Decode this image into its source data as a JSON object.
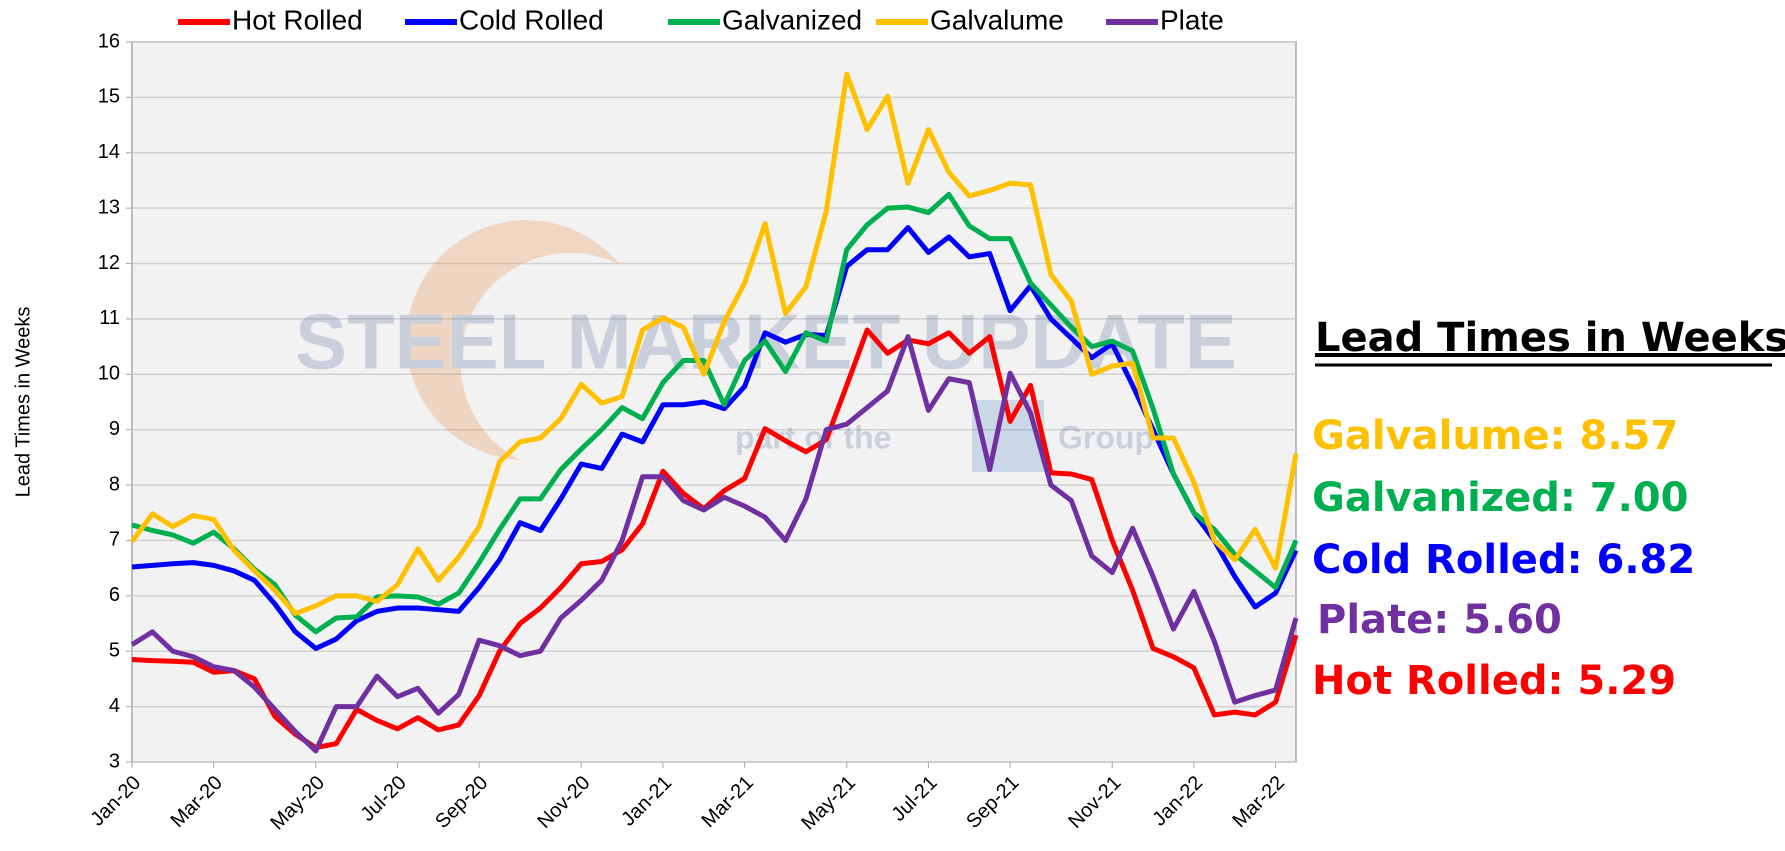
{
  "chart_data": {
    "type": "line",
    "y_label": "Lead Times in Weeks",
    "categories": [
      "Jan-20",
      null,
      null,
      null,
      "Mar-20",
      null,
      null,
      null,
      null,
      "May-20",
      null,
      null,
      null,
      "Jul-20",
      null,
      null,
      null,
      "Sep-20",
      null,
      null,
      null,
      null,
      "Nov-20",
      null,
      null,
      null,
      "Jan-21",
      null,
      null,
      null,
      "Mar-21",
      null,
      null,
      null,
      null,
      "May-21",
      null,
      null,
      null,
      "Jul-21",
      null,
      null,
      null,
      "Sep-21",
      null,
      null,
      null,
      null,
      "Nov-21",
      null,
      null,
      null,
      "Jan-22",
      null,
      null,
      null,
      "Mar-22",
      null
    ],
    "series": [
      {
        "name": "Hot Rolled",
        "color": "#ff0000",
        "values": [
          4.85,
          4.83,
          4.82,
          4.8,
          4.62,
          4.65,
          4.5,
          3.82,
          3.5,
          3.26,
          3.33,
          3.95,
          3.75,
          3.6,
          3.8,
          3.58,
          3.67,
          4.2,
          5.0,
          5.5,
          5.78,
          6.15,
          6.58,
          6.62,
          6.83,
          7.3,
          8.25,
          7.85,
          7.57,
          7.9,
          8.12,
          9.02,
          8.8,
          8.6,
          8.82,
          9.8,
          10.8,
          10.38,
          10.62,
          10.55,
          10.75,
          10.38,
          10.68,
          9.15,
          9.8,
          8.22,
          8.2,
          8.1,
          7.0,
          6.1,
          5.05,
          4.9,
          4.7,
          3.85,
          3.9,
          3.85,
          4.08,
          5.29
        ]
      },
      {
        "name": "Cold Rolled",
        "color": "#0000ff",
        "values": [
          6.52,
          6.55,
          6.58,
          6.6,
          6.55,
          6.45,
          6.28,
          5.85,
          5.35,
          5.05,
          5.22,
          5.55,
          5.72,
          5.78,
          5.78,
          5.75,
          5.72,
          6.15,
          6.65,
          7.32,
          7.18,
          7.75,
          8.38,
          8.3,
          8.92,
          8.78,
          9.45,
          9.45,
          9.5,
          9.38,
          9.78,
          10.75,
          10.58,
          10.72,
          10.7,
          11.95,
          12.25,
          12.25,
          12.65,
          12.2,
          12.48,
          12.12,
          12.18,
          11.15,
          11.6,
          11.0,
          10.65,
          10.3,
          10.55,
          9.8,
          9.0,
          8.2,
          7.5,
          7.0,
          6.35,
          5.8,
          6.05,
          6.82
        ]
      },
      {
        "name": "Galvanized",
        "color": "#00b050",
        "values": [
          7.28,
          7.18,
          7.1,
          6.95,
          7.15,
          6.85,
          6.48,
          6.2,
          5.65,
          5.35,
          5.6,
          5.62,
          5.98,
          6.0,
          5.98,
          5.85,
          6.05,
          6.6,
          7.2,
          7.75,
          7.75,
          8.28,
          8.65,
          9.0,
          9.4,
          9.2,
          9.85,
          10.25,
          10.25,
          9.45,
          10.25,
          10.6,
          10.05,
          10.75,
          10.6,
          12.25,
          12.7,
          13.0,
          13.02,
          12.92,
          13.25,
          12.68,
          12.45,
          12.45,
          11.65,
          11.25,
          10.85,
          10.5,
          10.6,
          10.42,
          9.38,
          8.2,
          7.5,
          7.2,
          6.75,
          6.45,
          6.15,
          7.0
        ]
      },
      {
        "name": "Galvalume",
        "color": "#ffc000",
        "values": [
          6.98,
          7.48,
          7.25,
          7.45,
          7.38,
          6.82,
          6.45,
          6.1,
          5.68,
          5.82,
          6.0,
          6.0,
          5.9,
          6.2,
          6.85,
          6.28,
          6.7,
          7.25,
          8.42,
          8.78,
          8.85,
          9.2,
          9.82,
          9.48,
          9.6,
          10.8,
          11.02,
          10.85,
          10.0,
          10.95,
          11.65,
          12.72,
          11.1,
          11.58,
          12.95,
          15.42,
          14.42,
          15.02,
          13.45,
          14.42,
          13.65,
          13.22,
          13.32,
          13.45,
          13.42,
          11.8,
          11.32,
          10.0,
          10.15,
          10.2,
          8.85,
          8.85,
          8.05,
          7.0,
          6.65,
          7.2,
          6.5,
          8.57
        ]
      },
      {
        "name": "Plate",
        "color": "#7030a0",
        "values": [
          5.12,
          5.35,
          5.0,
          4.9,
          4.72,
          4.65,
          4.35,
          3.95,
          3.55,
          3.2,
          4.0,
          4.0,
          4.55,
          4.18,
          4.33,
          3.88,
          4.22,
          5.2,
          5.1,
          4.92,
          5.0,
          5.6,
          5.92,
          6.28,
          7.0,
          8.15,
          8.15,
          7.72,
          7.55,
          7.78,
          7.62,
          7.42,
          7.0,
          7.75,
          9.0,
          9.1,
          9.4,
          9.7,
          10.68,
          9.35,
          9.92,
          9.85,
          8.28,
          10.02,
          9.3,
          8.0,
          7.72,
          6.72,
          6.42,
          7.22,
          6.35,
          5.4,
          6.08,
          5.18,
          4.08,
          4.2,
          4.3,
          5.6
        ]
      }
    ],
    "ylim": [
      3,
      16
    ],
    "yticks": [
      3,
      4,
      5,
      6,
      7,
      8,
      9,
      10,
      11,
      12,
      13,
      14,
      15,
      16
    ],
    "grid": true,
    "legend": "top",
    "annotation_title": "Lead Times in Weeks",
    "annotations": [
      {
        "text": "Galvalume: 8.57",
        "color": "#ffc000"
      },
      {
        "text": "Galvanized: 7.00",
        "color": "#00b050"
      },
      {
        "text": "Cold Rolled: 6.82",
        "color": "#0000ff"
      },
      {
        "text": "Plate: 5.60",
        "color": "#7030a0"
      },
      {
        "text": "Hot Rolled: 5.29",
        "color": "#ff0000"
      }
    ],
    "watermark": [
      "STEEL MARKET UPDATE",
      "part of the",
      "Group"
    ]
  }
}
